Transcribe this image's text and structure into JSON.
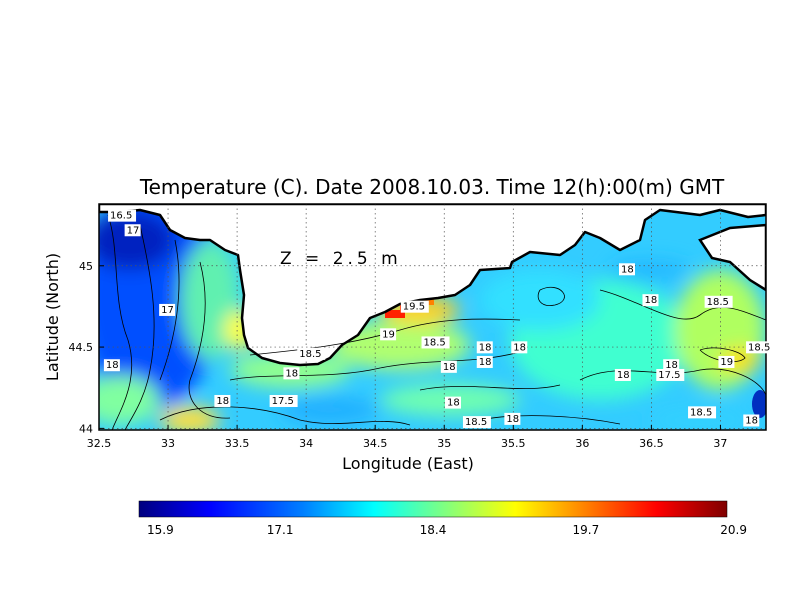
{
  "chart_data": {
    "type": "heatmap",
    "title": "Temperature (C). Date 2008.10.03. Time 12(h):00(m) GMT",
    "xlabel": "Longitude (East)",
    "ylabel": "Latitude (North)",
    "annotation": "Z = 2.5 m",
    "xlim": [
      32.5,
      37.33
    ],
    "ylim": [
      43.99,
      45.38
    ],
    "grid": true,
    "x_ticks": [
      "32.5",
      "33",
      "33.5",
      "34",
      "34.5",
      "35",
      "35.5",
      "36",
      "36.5",
      "37"
    ],
    "x_tick_values": [
      32.5,
      33,
      33.5,
      34,
      34.5,
      35,
      35.5,
      36,
      36.5,
      37
    ],
    "y_ticks": [
      "44",
      "44.5",
      "45"
    ],
    "y_tick_values": [
      44,
      44.5,
      45
    ],
    "colorbar": {
      "min": 15.9,
      "max": 20.9,
      "ticks": [
        "15.9",
        "17.1",
        "18.4",
        "19.7",
        "20.9"
      ],
      "tick_values": [
        15.9,
        17.1,
        18.4,
        19.7,
        20.9
      ],
      "colors": [
        "#00007f",
        "#0000ff",
        "#0080ff",
        "#00ffff",
        "#80ff80",
        "#ffff00",
        "#ff8000",
        "#ff0000",
        "#7f0000"
      ]
    },
    "contour_labels": [
      {
        "text": "16.5",
        "lon": 32.58,
        "lat": 45.29
      },
      {
        "text": "17",
        "lon": 32.7,
        "lat": 45.2
      },
      {
        "text": "17",
        "lon": 32.95,
        "lat": 44.71
      },
      {
        "text": "18",
        "lon": 32.55,
        "lat": 44.37
      },
      {
        "text": "18",
        "lon": 33.35,
        "lat": 44.15
      },
      {
        "text": "17.5",
        "lon": 33.75,
        "lat": 44.15
      },
      {
        "text": "18.5",
        "lon": 33.95,
        "lat": 44.44
      },
      {
        "text": "18",
        "lon": 33.85,
        "lat": 44.32
      },
      {
        "text": "19",
        "lon": 34.55,
        "lat": 44.56
      },
      {
        "text": "19.5",
        "lon": 34.7,
        "lat": 44.73
      },
      {
        "text": "18.5",
        "lon": 34.85,
        "lat": 44.51
      },
      {
        "text": "18",
        "lon": 35.25,
        "lat": 44.48
      },
      {
        "text": "18",
        "lon": 35.5,
        "lat": 44.48
      },
      {
        "text": "18",
        "lon": 35.25,
        "lat": 44.39
      },
      {
        "text": "18",
        "lon": 34.99,
        "lat": 44.36
      },
      {
        "text": "18",
        "lon": 35.02,
        "lat": 44.14
      },
      {
        "text": "18.5",
        "lon": 35.15,
        "lat": 44.02
      },
      {
        "text": "18",
        "lon": 35.45,
        "lat": 44.04
      },
      {
        "text": "18",
        "lon": 36.28,
        "lat": 44.96
      },
      {
        "text": "18",
        "lon": 36.45,
        "lat": 44.77
      },
      {
        "text": "18.5",
        "lon": 36.9,
        "lat": 44.76
      },
      {
        "text": "18",
        "lon": 36.25,
        "lat": 44.31
      },
      {
        "text": "17.5",
        "lon": 36.55,
        "lat": 44.31
      },
      {
        "text": "18",
        "lon": 36.6,
        "lat": 44.37
      },
      {
        "text": "18.5",
        "lon": 37.2,
        "lat": 44.48
      },
      {
        "text": "19",
        "lon": 37.0,
        "lat": 44.39
      },
      {
        "text": "18.5",
        "lon": 36.78,
        "lat": 44.08
      },
      {
        "text": "18",
        "lon": 37.18,
        "lat": 44.03
      }
    ]
  }
}
